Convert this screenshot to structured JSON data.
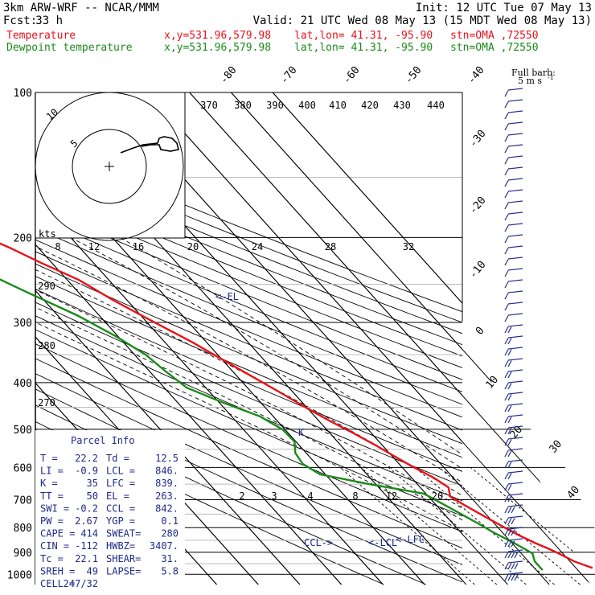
{
  "header": {
    "model": "3km ARW-WRF -- NCAR/MMM",
    "init": "Init: 12 UTC Tue 07 May 13",
    "fcst_label": "Fcst:",
    "fcst_value": "33 h",
    "valid": "Valid: 21 UTC Wed 08 May 13 (15 MDT Wed 08 May 13)",
    "temp_line": {
      "name": "Temperature",
      "xy": "x,y=531.96,579.98",
      "latlon": "lat,lon= 41.31, -95.90",
      "stn": "stn=OMA ,72550"
    },
    "dew_line": {
      "name": "Dewpoint temperature",
      "xy": "x,y=531.96,579.98",
      "latlon": "lat,lon= 41.31, -95.90",
      "stn": "stn=OMA ,72550"
    },
    "barb_title": "Full barb:",
    "barb_unit": "5 m s",
    "barb_sup": "-1"
  },
  "colors": {
    "temperature": "#e8121a",
    "dewpoint": "#1a8a1a",
    "annotation": "#1e2a8a",
    "axis": "#000000"
  },
  "chart_data": {
    "type": "line",
    "skew_t": true,
    "y_scale": "log-pressure",
    "ylabel_unit": "hPa",
    "pressure_ticks": [
      "100",
      "200",
      "300",
      "400",
      "500",
      "600",
      "700",
      "800",
      "900",
      "1000"
    ],
    "pressure_ticks_values": [
      100,
      200,
      300,
      400,
      500,
      600,
      700,
      800,
      900,
      1000
    ],
    "dry_adiabat_labels": [
      "370",
      "380",
      "390",
      "400",
      "410",
      "420",
      "430",
      "440",
      "290",
      "280",
      "270"
    ],
    "isotherm_labels": [
      "-80",
      "-70",
      "-60",
      "-50",
      "-40",
      "-30",
      "-20",
      "-10",
      "0",
      "10",
      "20",
      "30",
      "40"
    ],
    "mixing_ratio_labels_lower": [
      "2",
      "3",
      "4",
      "8",
      "12",
      "20"
    ],
    "hodograph_ring_labels": [
      "5",
      "10"
    ],
    "hodograph_unit": "kts",
    "hodograph_speed_labels": [
      "8",
      "12",
      "16",
      "20",
      "24",
      "28",
      "32"
    ],
    "series": [
      {
        "name": "Temperature",
        "pressure": [
          970,
          940,
          905,
          885,
          860,
          830,
          800,
          760,
          720,
          690,
          660,
          630,
          600,
          570,
          540,
          510,
          480,
          450,
          420,
          390,
          360,
          330,
          300,
          270,
          245,
          225,
          210,
          200,
          190,
          175,
          160,
          145,
          130,
          118,
          108,
          100
        ],
        "temp_c": [
          24,
          21,
          19,
          17.6,
          15.5,
          13.4,
          11.6,
          9.3,
          6.9,
          5.2,
          6.8,
          5.3,
          2.8,
          0.6,
          -1.6,
          -4.3,
          -7.4,
          -10.3,
          -13.1,
          -16.3,
          -19.7,
          -23.4,
          -28.2,
          -33.3,
          -37.2,
          -42.8,
          -46.9,
          -50.2,
          -51.3,
          -52.5,
          -53.8,
          -55.4,
          -56.8,
          -58.1,
          -59.3,
          -60.6
        ]
      },
      {
        "name": "Dewpoint temperature",
        "pressure": [
          980,
          940,
          905,
          880,
          850,
          820,
          790,
          760,
          720,
          680,
          650,
          620,
          590,
          560,
          530,
          500,
          470,
          440,
          410,
          380,
          350,
          320,
          290,
          260,
          230,
          210,
          200,
          190,
          170,
          150,
          140,
          135,
          130,
          120,
          110,
          100
        ],
        "temp_c": [
          11.5,
          11.5,
          12.7,
          11.5,
          9.9,
          7.9,
          6.4,
          4.7,
          2.2,
          -0.5,
          -11.5,
          -21.3,
          -23.2,
          -22.6,
          -20.3,
          -20.6,
          -23.2,
          -29.1,
          -34.6,
          -36.1,
          -37.3,
          -40.6,
          -45.3,
          -52.3,
          -59.8,
          -65,
          -66,
          -67.5,
          -69.3,
          -68.5,
          -71.3,
          -77.5,
          -79.7,
          -82.7,
          -84.8,
          -86.2
        ]
      }
    ],
    "annotations": {
      "el": "<-EL",
      "lcl": "<-LCL",
      "lfc": "<-LFC",
      "ccl": "CCL->",
      "k_mark": "K"
    },
    "parcel_info": {
      "title": "Parcel Info",
      "rows": [
        [
          "T  =",
          "22.2",
          "Td =",
          "12.5"
        ],
        [
          "LI =",
          "-0.9",
          "LCL =",
          "846."
        ],
        [
          "K  =",
          "35",
          "LFC =",
          "839."
        ],
        [
          "TT =",
          "50",
          "EL  =",
          "263."
        ],
        [
          "SWI =",
          "-0.2",
          "CCL =",
          "842."
        ],
        [
          "PW =",
          "2.67",
          "YGP =",
          "0.1"
        ],
        [
          "CAPE =",
          "414",
          "SWEAT=",
          "280"
        ],
        [
          "CIN =",
          "-112",
          "HWBZ=",
          "3407."
        ],
        [
          "Tc =",
          "22.1",
          "SHEAR=",
          "31."
        ],
        [
          "SREH =",
          "49",
          "LAPSE=",
          "5.8"
        ],
        [
          "CELL =",
          "247/32",
          "",
          ""
        ]
      ]
    }
  }
}
